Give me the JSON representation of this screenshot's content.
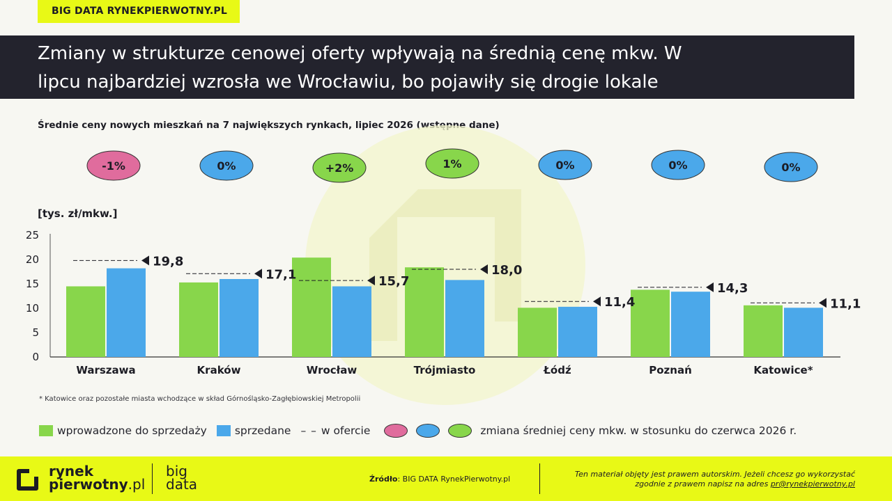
{
  "header": {
    "tag": "BIG DATA RYNEKPIERWOTNY.PL",
    "title_line1": "Zmiany w strukturze cenowej oferty wpływają na średnią cenę mkw. W",
    "title_line2": "lipcu najbardziej wzrosła we Wrocławiu, bo pojawiły się drogie lokale",
    "subtitle": "Średnie ceny nowych mieszkań na 7 największych rynkach, lipiec 2026  (wstępne dane)"
  },
  "chart_data": {
    "type": "bar",
    "ylabel": "[tys. zł/mkw.]",
    "ylim": [
      0,
      25
    ],
    "yticks": [
      "0",
      "5",
      "10",
      "15",
      "20",
      "25"
    ],
    "categories": [
      "Warszawa",
      "Kraków",
      "Wrocław",
      "Trójmiasto",
      "Łódź",
      "Poznań",
      "Katowice*"
    ],
    "series": [
      {
        "name": "wprowadzone do sprzedaży",
        "color": "#88d64b",
        "values": [
          14.5,
          15.3,
          20.4,
          18.4,
          10.1,
          13.8,
          10.6
        ]
      },
      {
        "name": "sprzedane",
        "color": "#4ba8ea",
        "values": [
          18.2,
          16.0,
          14.5,
          15.8,
          10.3,
          13.4,
          10.1
        ]
      },
      {
        "name": "w ofercie",
        "style": "dashed",
        "values": [
          19.8,
          17.1,
          15.7,
          18.0,
          11.4,
          14.3,
          11.1
        ]
      }
    ],
    "offer_labels": [
      "19,8",
      "17,1",
      "15,7",
      "18,0",
      "11,4",
      "14,3",
      "11,1"
    ],
    "changes": [
      {
        "label": "-1%",
        "color": "#e06c9d"
      },
      {
        "label": "0%",
        "color": "#4ba8ea"
      },
      {
        "label": "+2%",
        "color": "#88d64b"
      },
      {
        "label": "1%",
        "color": "#88d64b"
      },
      {
        "label": "0%",
        "color": "#4ba8ea"
      },
      {
        "label": "0%",
        "color": "#4ba8ea"
      },
      {
        "label": "0%",
        "color": "#4ba8ea"
      }
    ]
  },
  "footnote": "* Katowice oraz pozostałe miasta wchodzące w skład Górnośląsko-Zagłębiowskiej Metropolii",
  "legend": {
    "green": "wprowadzone do sprzedaży",
    "blue": "sprzedane",
    "dash_symbol": "– –",
    "dash": "w ofercie",
    "change": "zmiana średniej ceny mkw. w stosunku do czerwca 2026 r.",
    "colors": {
      "green": "#88d64b",
      "blue": "#4ba8ea",
      "pink": "#e06c9d"
    }
  },
  "footer": {
    "logo_line1": "rynek",
    "logo_line2": "pierwotny",
    "logo_suffix": ".pl",
    "big": "big",
    "data": "data",
    "source_label": "Źródło",
    "source_text": ": BIG DATA RynekPierwotny.pl",
    "copyright_line1": "Ten materiał objęty jest prawem autorskim. Jeżeli chcesz go wykorzystać",
    "copyright_line2": "zgodnie z prawem napisz na adres ",
    "email": "pr@rynekpierwotny.pl"
  }
}
